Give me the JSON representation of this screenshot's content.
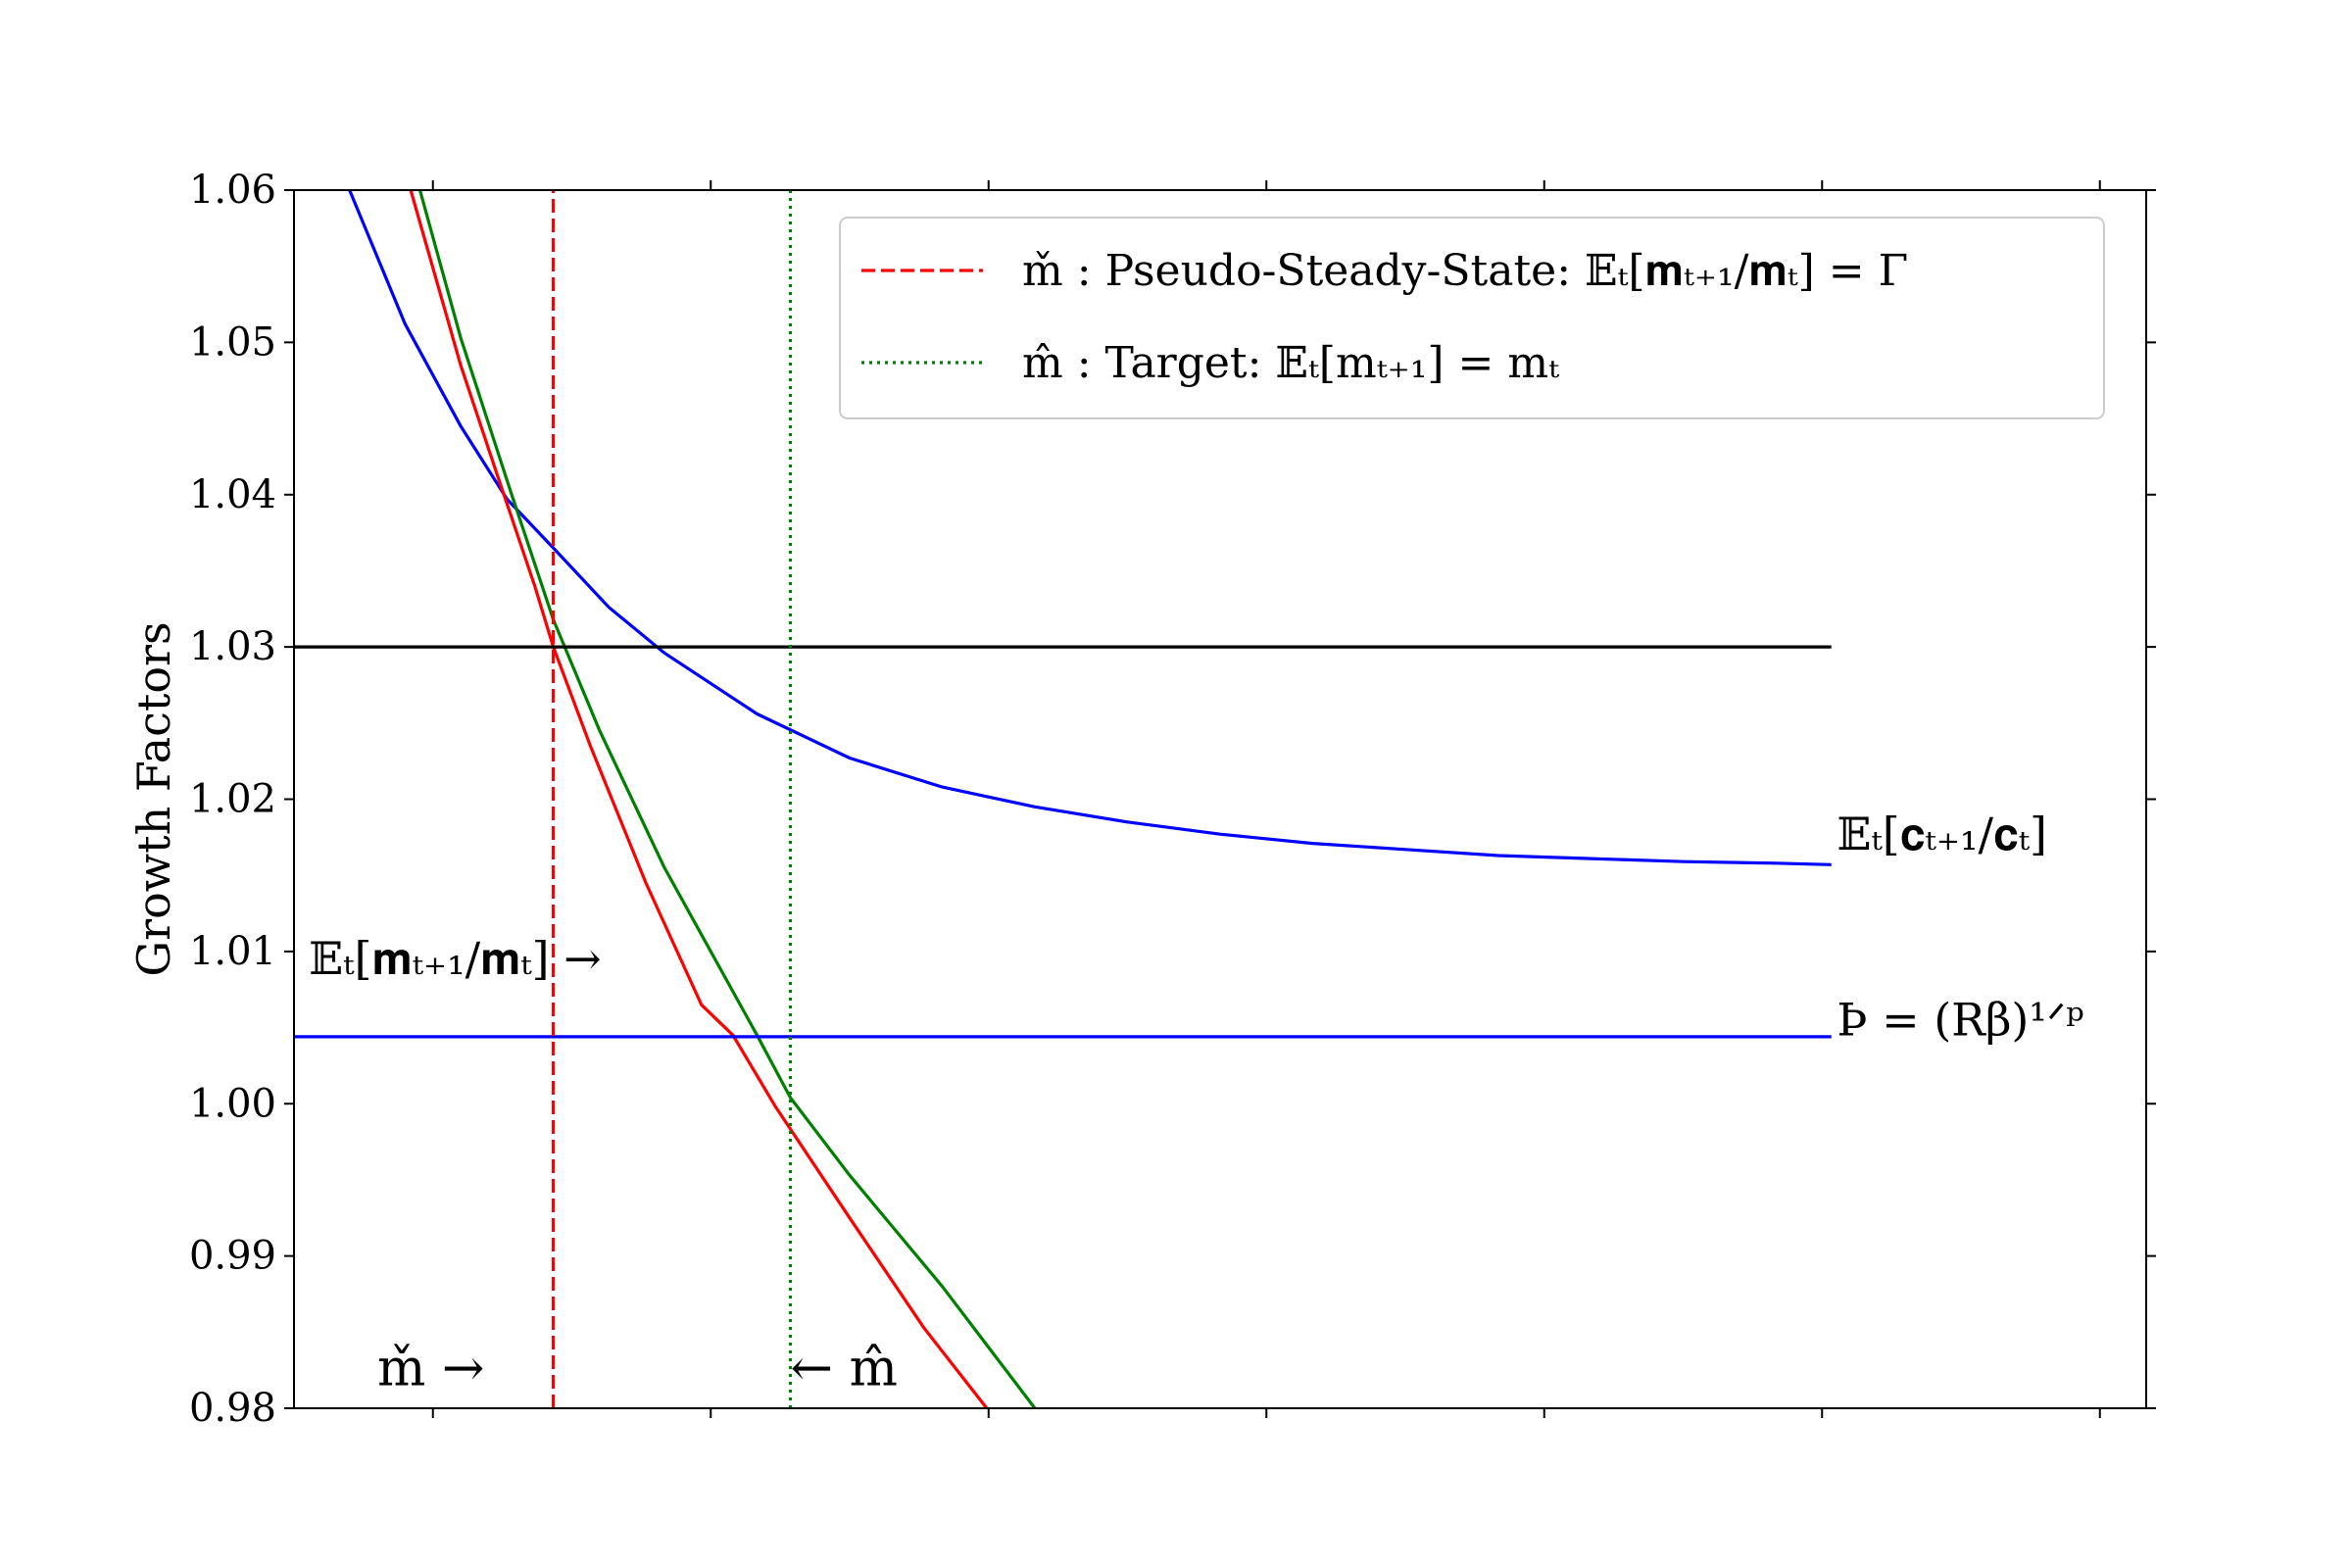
{
  "chart_data": {
    "type": "line",
    "ylabel": "Growth Factors",
    "xlabel": "",
    "xlim": [
      0,
      1
    ],
    "ylim": [
      0.98,
      1.06
    ],
    "grid": false,
    "legend_position": "top-right",
    "y_ticks": [
      0.98,
      0.99,
      1.0,
      1.01,
      1.02,
      1.03,
      1.04,
      1.05,
      1.06
    ],
    "y_tick_labels": [
      "0.98",
      "0.99",
      "1.00",
      "1.01",
      "1.02",
      "1.03",
      "1.04",
      "1.05",
      "1.06"
    ],
    "x_ticks": [
      0.075,
      0.225,
      0.375,
      0.525,
      0.675,
      0.825,
      0.975
    ],
    "colors": {
      "red": "#ff0000",
      "green": "#008000",
      "blue": "#0000ff",
      "black": "#000000"
    },
    "series": [
      {
        "name": "",
        "color": "#0000ff",
        "style": "solid",
        "x": [
          0.03,
          0.06,
          0.09,
          0.115,
          0.14,
          0.17,
          0.2,
          0.25,
          0.3,
          0.35,
          0.4,
          0.45,
          0.5,
          0.55,
          0.6,
          0.65,
          0.7,
          0.75,
          0.8,
          0.83
        ],
        "y": [
          1.06,
          1.0512,
          1.0445,
          1.0397,
          1.0365,
          1.0326,
          1.0296,
          1.0256,
          1.0227,
          1.0208,
          1.0195,
          1.0185,
          1.0177,
          1.0171,
          1.0167,
          1.0163,
          1.0161,
          1.0159,
          1.0158,
          1.0157
        ]
      },
      {
        "name": "",
        "color": "#ff0000",
        "style": "solid",
        "x": [
          0.063,
          0.09,
          0.11,
          0.13,
          0.14,
          0.16,
          0.19,
          0.22,
          0.237,
          0.26,
          0.3,
          0.34,
          0.374
        ],
        "y": [
          1.06,
          1.0485,
          1.0412,
          1.034,
          1.03,
          1.0235,
          1.0145,
          1.0065,
          1.0045,
          0.9998,
          0.9925,
          0.9853,
          0.98
        ]
      },
      {
        "name": "",
        "color": "#008000",
        "style": "solid",
        "x": [
          0.068,
          0.09,
          0.117,
          0.14,
          0.165,
          0.2,
          0.25,
          0.268,
          0.3,
          0.35,
          0.4
        ],
        "y": [
          1.06,
          1.0503,
          1.0402,
          1.0318,
          1.0245,
          1.0155,
          1.0045,
          1.0004,
          0.9953,
          0.988,
          0.98
        ]
      },
      {
        "name": "",
        "color": "#000000",
        "style": "solid",
        "x": [
          0,
          0.83
        ],
        "y": [
          1.03,
          1.03
        ]
      },
      {
        "name": "",
        "color": "#0000ff",
        "style": "solid",
        "x": [
          0,
          0.83
        ],
        "y": [
          1.0044,
          1.0044
        ]
      },
      {
        "name": "m̌ : Pseudo-Steady-State: 𝔼ₜ[𝐦ₜ₊₁/𝐦ₜ] = Γ",
        "color": "#ff0000",
        "style": "dashed",
        "x": [
          0.14,
          0.14
        ],
        "y": [
          0.98,
          1.06
        ]
      },
      {
        "name": "m̂ : Target: 𝔼ₜ[mₜ₊₁] = mₜ",
        "color": "#008000",
        "style": "dotted",
        "x": [
          0.268,
          0.268
        ],
        "y": [
          0.98,
          1.06
        ]
      }
    ],
    "legend": [
      {
        "label": "m̌ : Pseudo-Steady-State: 𝔼ₜ[𝐦ₜ₊₁/𝐦ₜ] = Γ",
        "color": "#ff0000",
        "style": "dashed"
      },
      {
        "label": "m̂ : Target: 𝔼ₜ[mₜ₊₁] = mₜ",
        "color": "#008000",
        "style": "dotted"
      }
    ],
    "annotations": [
      {
        "text": "𝔼ₜ[𝐜ₜ₊₁/𝐜ₜ]",
        "x": 0.833,
        "y": 1.0167
      },
      {
        "text": "Þ = (Rβ)¹ᐟᵖ",
        "x": 0.833,
        "y": 1.0045
      },
      {
        "text": "𝔼ₜ[𝐦ₜ₊₁/𝐦ₜ] →",
        "x": 0.008,
        "y": 1.0085
      },
      {
        "text": "m̌ →",
        "x": 0.045,
        "y": 0.9815
      },
      {
        "text": "← m̂",
        "x": 0.268,
        "y": 0.9815
      }
    ]
  }
}
